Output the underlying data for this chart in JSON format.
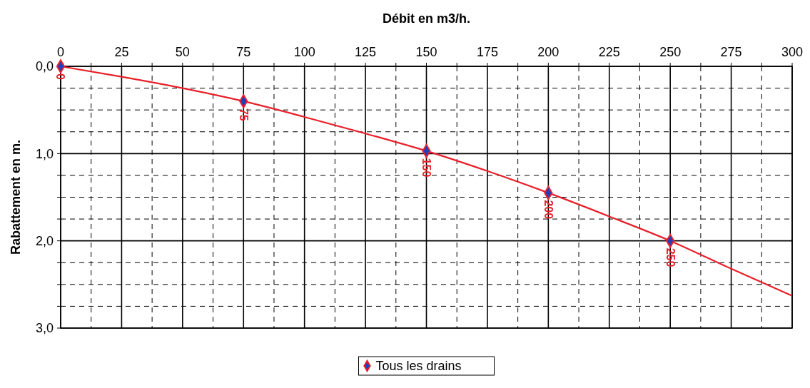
{
  "chart_data": {
    "type": "line",
    "xlabel": "Débit en m3/h.",
    "ylabel": "Rabattement en m.",
    "xlim": [
      0,
      300
    ],
    "ylim": [
      3,
      0
    ],
    "xticks": [
      0,
      {
        "value": 12.5,
        "label": null
      },
      25,
      {
        "value": 37.5,
        "label": null
      },
      50,
      {
        "value": 62.5,
        "label": null
      },
      75,
      {
        "value": 87.5,
        "label": null
      },
      100,
      {
        "value": 112.5,
        "label": null
      },
      125,
      {
        "value": 137.5,
        "label": null
      },
      150,
      {
        "value": 162.5,
        "label": null
      },
      175,
      {
        "value": 187.5,
        "label": null
      },
      200,
      {
        "value": 212.5,
        "label": null
      },
      225,
      {
        "value": 237.5,
        "label": null
      },
      250,
      {
        "value": 262.5,
        "label": null
      },
      275,
      {
        "value": 287.5,
        "label": null
      },
      300
    ],
    "yticks": [
      {
        "value": 0,
        "label": "0,0"
      },
      {
        "value": 0.25,
        "label": null
      },
      {
        "value": 0.5,
        "label": null
      },
      {
        "value": 0.75,
        "label": null
      },
      {
        "value": 1,
        "label": "1,0"
      },
      {
        "value": 1.25,
        "label": null
      },
      {
        "value": 1.5,
        "label": null
      },
      {
        "value": 1.75,
        "label": null
      },
      {
        "value": 2,
        "label": "2,0"
      },
      {
        "value": 2.25,
        "label": null
      },
      {
        "value": 2.5,
        "label": null
      },
      {
        "value": 2.75,
        "label": null
      },
      {
        "value": 3,
        "label": "3,0"
      }
    ],
    "grid": true,
    "legend": "bottom",
    "series": [
      {
        "color": "#e8202a",
        "marker": "none",
        "x": [
          0,
          25,
          50,
          75,
          100,
          125,
          150,
          175,
          200,
          225,
          250,
          275,
          300
        ],
        "values": [
          0,
          0.12,
          0.25,
          0.4,
          0.58,
          0.77,
          0.97,
          1.2,
          1.45,
          1.72,
          2.0,
          2.32,
          2.63
        ]
      },
      {
        "type": "scatter",
        "name": "Tous les drains",
        "color": "#1f3fbf",
        "marker": "diamond",
        "x": [
          0,
          75,
          150,
          200,
          250
        ],
        "values": [
          0,
          0.4,
          0.97,
          1.45,
          2.0
        ]
      }
    ],
    "annotations": [
      {
        "text": "0",
        "x": 0,
        "y": 0
      },
      {
        "text": "75",
        "x": 75,
        "y": 0.4
      },
      {
        "text": "150",
        "x": 150,
        "y": 0.97
      },
      {
        "text": "200",
        "x": 200,
        "y": 1.45
      },
      {
        "text": "250",
        "x": 250,
        "y": 2.0
      }
    ]
  }
}
